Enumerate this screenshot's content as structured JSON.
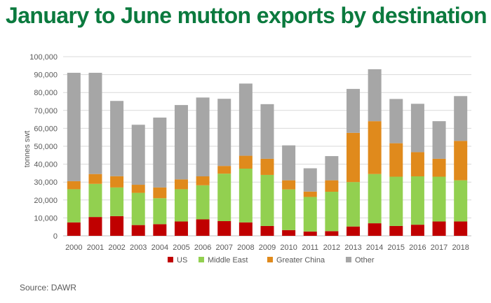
{
  "title": "January to June mutton exports by destination",
  "source": "Source: DAWR",
  "chart_data": {
    "type": "bar",
    "stacked": true,
    "title": "",
    "xlabel": "",
    "ylabel": "tonnes swt",
    "ylim": [
      0,
      100000
    ],
    "yticks": [
      0,
      10000,
      20000,
      30000,
      40000,
      50000,
      60000,
      70000,
      80000,
      90000,
      100000
    ],
    "ytick_labels": [
      "0",
      "10,000",
      "20,000",
      "30,000",
      "40,000",
      "50,000",
      "60,000",
      "70,000",
      "80,000",
      "90,000",
      "100,000"
    ],
    "grid": true,
    "legend_position": "bottom",
    "categories": [
      "2000",
      "2001",
      "2002",
      "2003",
      "2004",
      "2005",
      "2006",
      "2007",
      "2008",
      "2009",
      "2010",
      "2011",
      "2012",
      "2013",
      "2014",
      "2015",
      "2016",
      "2017",
      "2018"
    ],
    "series": [
      {
        "name": "US",
        "color": "#c00000",
        "values": [
          7500,
          10500,
          11000,
          6000,
          6500,
          8000,
          9200,
          8200,
          7500,
          5500,
          3200,
          2400,
          2600,
          5200,
          7000,
          5500,
          6200,
          8000,
          8000
        ]
      },
      {
        "name": "Middle East",
        "color": "#92d050",
        "values": [
          18500,
          18500,
          16000,
          18000,
          14500,
          18000,
          19000,
          26500,
          30000,
          28500,
          22700,
          19300,
          22000,
          24800,
          27500,
          27500,
          27000,
          25000,
          23000
        ]
      },
      {
        "name": "Greater China",
        "color": "#e08a1c",
        "values": [
          4500,
          5500,
          6300,
          4500,
          6000,
          5500,
          5000,
          4300,
          7200,
          9000,
          5100,
          3000,
          6400,
          27500,
          29500,
          18700,
          13500,
          10000,
          22000
        ]
      },
      {
        "name": "Other",
        "color": "#a6a6a6",
        "values": [
          60500,
          56500,
          42000,
          33500,
          39000,
          41500,
          44000,
          37500,
          40300,
          30500,
          19500,
          13000,
          13500,
          24500,
          29000,
          24700,
          27000,
          21000,
          25000
        ]
      }
    ]
  }
}
